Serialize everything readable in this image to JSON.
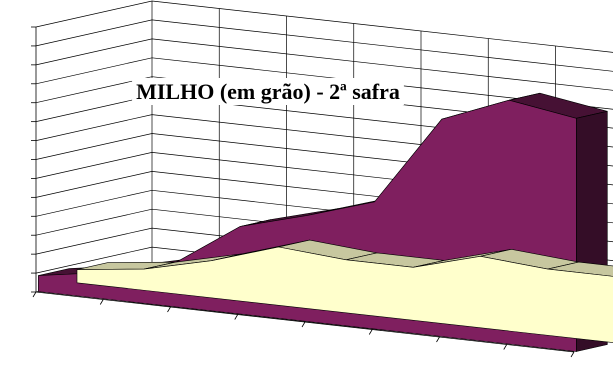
{
  "chart_data": {
    "type": "area",
    "title": "MILHO (em grão) - 2ª safra",
    "xlabel": "",
    "ylabel": "",
    "categories": [
      "",
      "",
      "",
      "",
      "",
      "",
      "",
      "",
      ""
    ],
    "ylim": [
      0,
      100
    ],
    "grid": true,
    "legend": "none",
    "series": [
      {
        "values": [
          5,
          8,
          14,
          22,
          20,
          20,
          27,
          25,
          25
        ],
        "color": "#FFFFCC"
      },
      {
        "values": [
          6,
          10,
          16,
          33,
          40,
          48,
          82,
          92,
          88
        ],
        "color": "#7F1F5F"
      }
    ]
  }
}
